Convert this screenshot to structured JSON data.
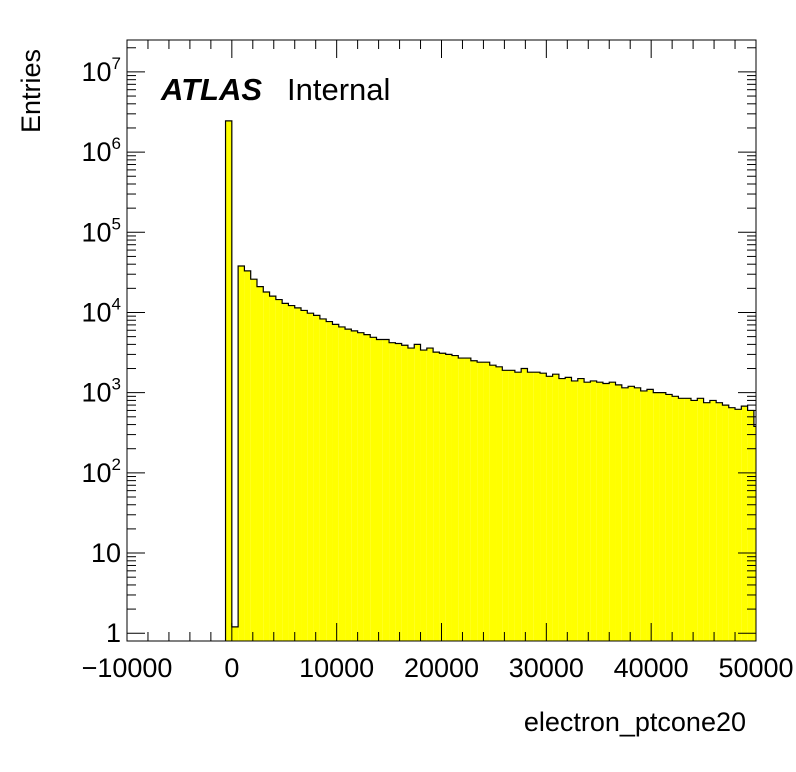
{
  "chart_data": {
    "type": "histogram",
    "title": "",
    "xlabel": "electron_ptcone20",
    "ylabel": "Entries",
    "xlim": [
      -10000,
      50000
    ],
    "ylim": [
      0.8,
      25000000
    ],
    "yscale": "log",
    "grid": false,
    "fill_color": "#ffff00",
    "line_color": "#000000",
    "x_tick_labels": [
      "−10000",
      "0",
      "10000",
      "20000",
      "30000",
      "40000",
      "50000"
    ],
    "x_ticks": [
      -10000,
      0,
      10000,
      20000,
      30000,
      40000,
      50000
    ],
    "y_ticks": [
      {
        "value": 1,
        "base": "1",
        "exp": ""
      },
      {
        "value": 10,
        "base": "10",
        "exp": ""
      },
      {
        "value": 100,
        "base": "10",
        "exp": "2"
      },
      {
        "value": 1000,
        "base": "10",
        "exp": "3"
      },
      {
        "value": 10000,
        "base": "10",
        "exp": "4"
      },
      {
        "value": 100000,
        "base": "10",
        "exp": "5"
      },
      {
        "value": 1000000,
        "base": "10",
        "exp": "6"
      },
      {
        "value": 10000000,
        "base": "10",
        "exp": "7"
      }
    ],
    "label_main": "ATLAS",
    "label_sub": "Internal",
    "bins": {
      "low_edges": [
        -600,
        0,
        600,
        1200,
        1800,
        2400,
        3000,
        3600,
        4200,
        4800,
        5400,
        6000,
        6600,
        7200,
        7800,
        8400,
        9000,
        9600,
        10200,
        10800,
        11400,
        12000,
        12600,
        13200,
        13800,
        14400,
        15000,
        15600,
        16200,
        16800,
        17400,
        18000,
        18600,
        19200,
        19800,
        20400,
        21000,
        21600,
        22200,
        22800,
        23400,
        24000,
        24600,
        25200,
        25800,
        26400,
        27000,
        27600,
        28200,
        28800,
        29400,
        30000,
        30600,
        31200,
        31800,
        32400,
        33000,
        33600,
        34200,
        34800,
        35400,
        36000,
        36600,
        37200,
        37800,
        38400,
        39000,
        39600,
        40200,
        40800,
        41400,
        42000,
        42600,
        43200,
        43800,
        44400,
        45000,
        45600,
        46200,
        46800,
        47400,
        48000,
        48600,
        49200,
        49800
      ],
      "width": 600,
      "counts": [
        2450000,
        1.2,
        38000,
        33000,
        26000,
        21000,
        18000,
        16000,
        14500,
        13000,
        12200,
        11400,
        10600,
        9800,
        9200,
        8300,
        7700,
        7100,
        6600,
        6200,
        5900,
        5600,
        5300,
        4900,
        4600,
        4600,
        4200,
        4100,
        3900,
        3600,
        4000,
        3400,
        3600,
        3200,
        3100,
        3000,
        2900,
        2700,
        2700,
        2500,
        2400,
        2400,
        2200,
        2100,
        1900,
        1900,
        1800,
        2000,
        1800,
        1800,
        1750,
        1600,
        1700,
        1500,
        1550,
        1400,
        1500,
        1350,
        1400,
        1350,
        1300,
        1350,
        1250,
        1150,
        1200,
        1150,
        1050,
        1100,
        1000,
        1000,
        950,
        900,
        850,
        850,
        800,
        850,
        750,
        800,
        750,
        700,
        650,
        620,
        680,
        600,
        380
      ]
    }
  }
}
